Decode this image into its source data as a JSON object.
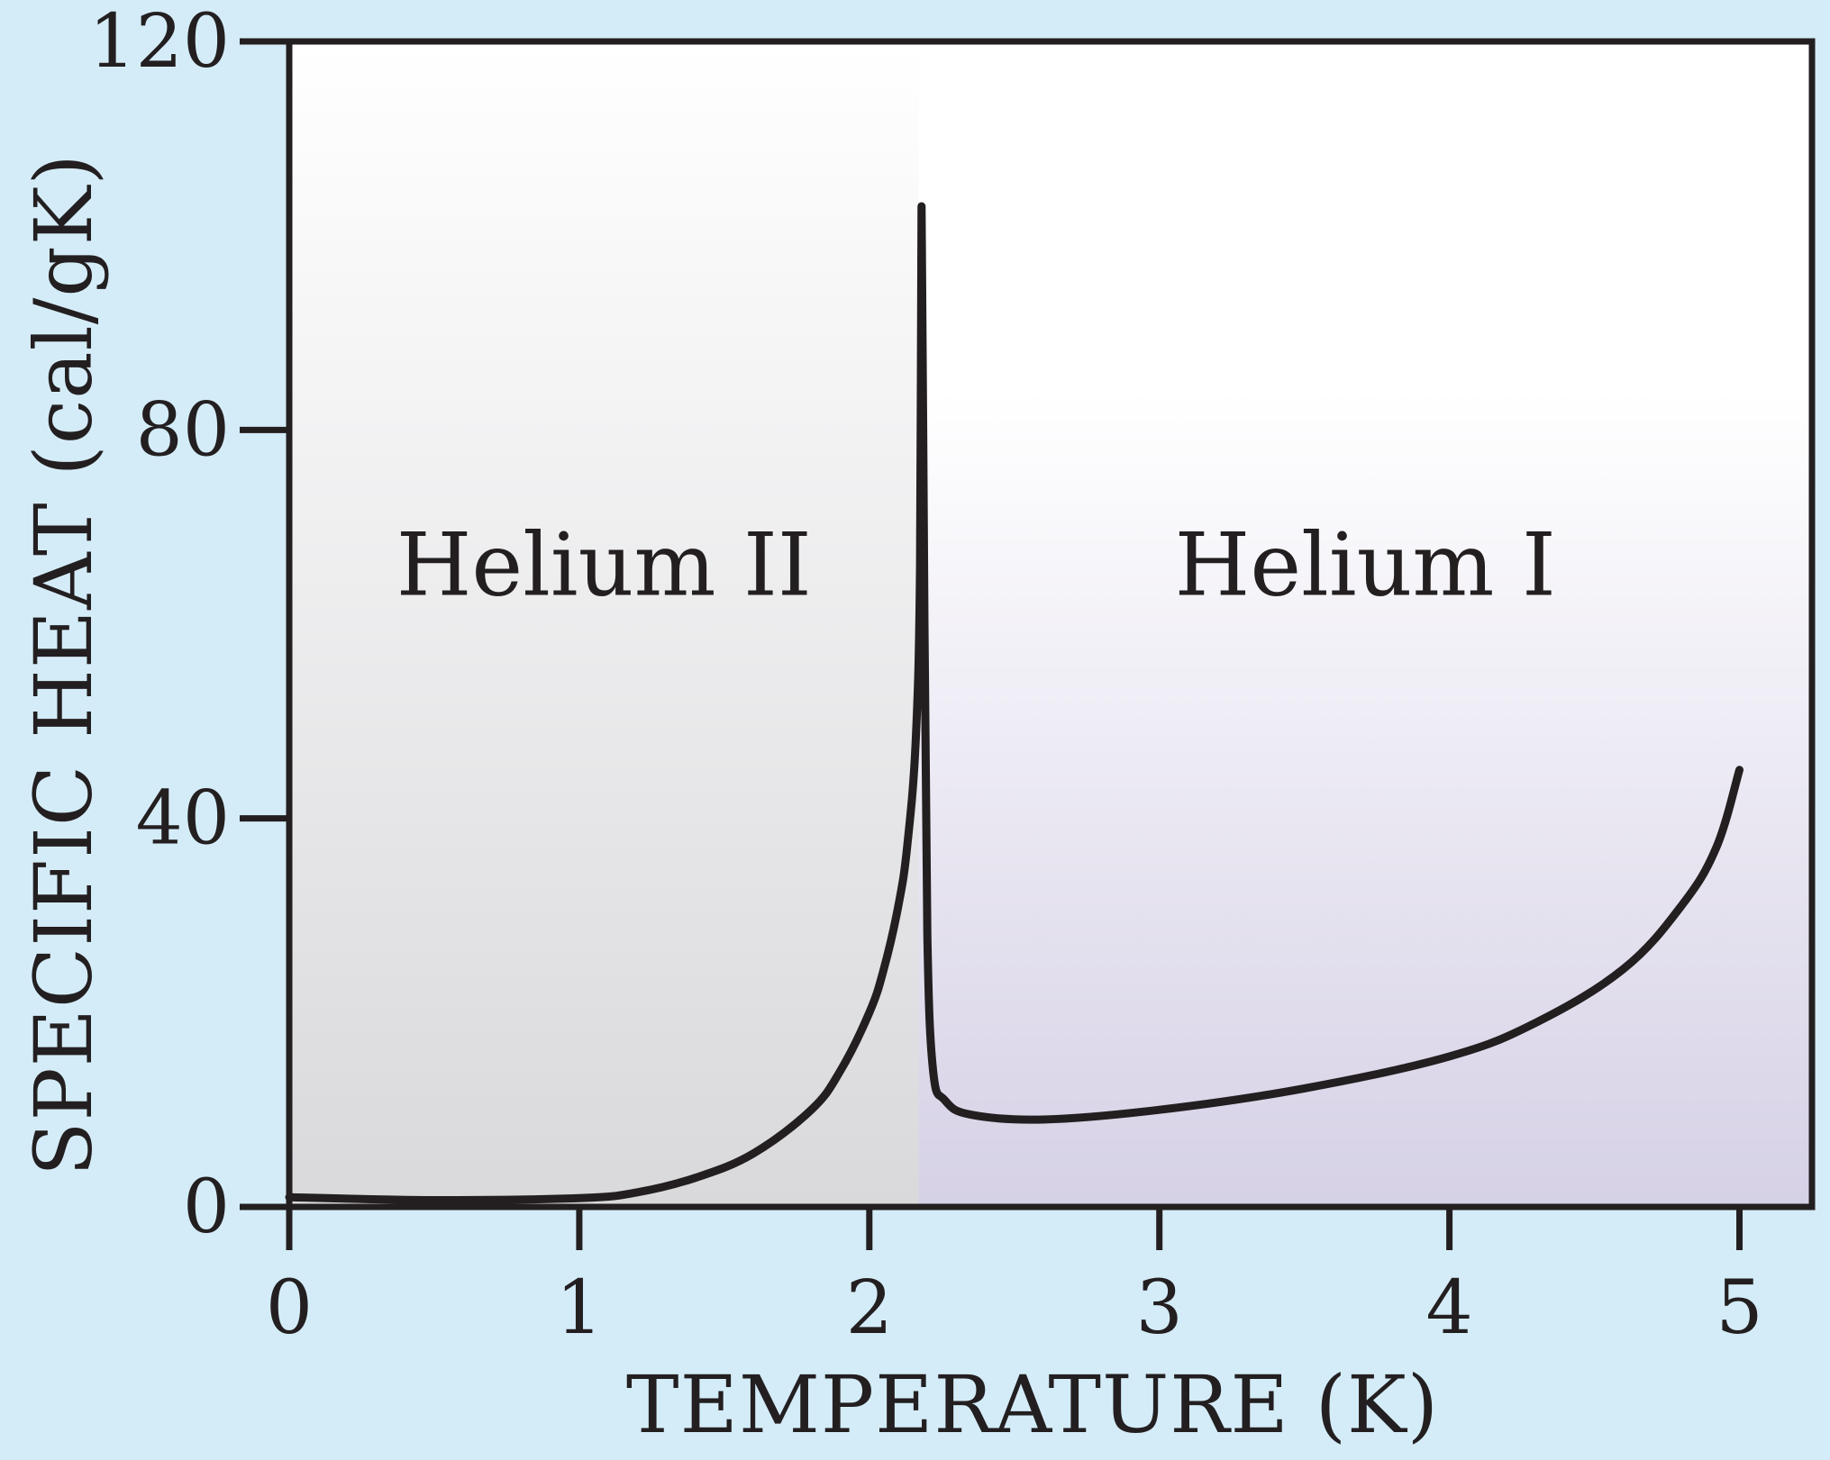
{
  "chart_data": {
    "type": "line",
    "title": "",
    "xlabel": "TEMPERATURE (K)",
    "ylabel": "SPECIFIC HEAT (cal/gK)",
    "xlim": [
      0,
      5.25
    ],
    "ylim": [
      0,
      120
    ],
    "x_ticks": [
      0,
      1,
      2,
      3,
      4,
      5
    ],
    "y_ticks": [
      0,
      40,
      80,
      120
    ],
    "grid": false,
    "regions": [
      {
        "label": "Helium II",
        "x_range": [
          0,
          2.17
        ],
        "fill": "gray-gradient"
      },
      {
        "label": "Helium I",
        "x_range": [
          2.17,
          5.25
        ],
        "fill": "lavender-gradient"
      }
    ],
    "series": [
      {
        "points": [
          [
            0,
            1.0
          ],
          [
            0.5,
            0.7
          ],
          [
            1.0,
            0.9
          ],
          [
            1.2,
            1.5
          ],
          [
            1.4,
            3.0
          ],
          [
            1.6,
            5.5
          ],
          [
            1.8,
            10.0
          ],
          [
            1.9,
            14.0
          ],
          [
            2.0,
            20.0
          ],
          [
            2.05,
            24.5
          ],
          [
            2.1,
            31.0
          ],
          [
            2.13,
            37.0
          ],
          [
            2.16,
            48.0
          ],
          [
            2.175,
            66.0
          ],
          [
            2.18,
            103.0
          ],
          [
            2.19,
            60.0
          ],
          [
            2.2,
            28.0
          ],
          [
            2.22,
            14.0
          ],
          [
            2.26,
            11.0
          ],
          [
            2.35,
            9.5
          ],
          [
            2.6,
            9.0
          ],
          [
            3.0,
            10.0
          ],
          [
            3.5,
            12.2
          ],
          [
            4.0,
            15.5
          ],
          [
            4.3,
            19.0
          ],
          [
            4.6,
            24.5
          ],
          [
            4.8,
            31.0
          ],
          [
            4.92,
            37.0
          ],
          [
            5.0,
            45.0
          ]
        ]
      }
    ],
    "colors": {
      "page_background": "#d4ecf8",
      "axis": "#231f20",
      "curve": "#231f20",
      "helium2_top": "#ffffff",
      "helium2_bottom": "#d9d9dc",
      "helium1_top": "#ffffff",
      "helium1_bottom": "#d6d1e6"
    }
  }
}
